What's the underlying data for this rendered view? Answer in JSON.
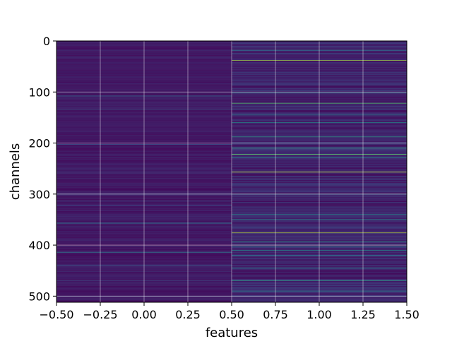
{
  "chart_data": {
    "type": "heatmap",
    "title": "",
    "xlabel": "features",
    "ylabel": "channels",
    "xlim": [
      -0.5,
      1.5
    ],
    "ylim": [
      512,
      0
    ],
    "x_ticks": [
      -0.5,
      -0.25,
      0.0,
      0.25,
      0.5,
      0.75,
      1.0,
      1.25,
      1.5
    ],
    "x_tick_labels": [
      "−0.50",
      "−0.25",
      "0.00",
      "0.25",
      "0.50",
      "0.75",
      "1.00",
      "1.25",
      "1.50"
    ],
    "y_ticks": [
      0,
      100,
      200,
      300,
      400,
      500
    ],
    "y_tick_labels": [
      "0",
      "100",
      "200",
      "300",
      "400",
      "500"
    ],
    "grid": true,
    "colormap": "viridis",
    "n_rows": 512,
    "columns": [
      0,
      1
    ],
    "bright_rows": {
      "column_0": [
        [
          108,
          0.35
        ],
        [
          134,
          0.28
        ],
        [
          203,
          0.25
        ],
        [
          300,
          0.22
        ],
        [
          322,
          0.25
        ],
        [
          357,
          0.38
        ],
        [
          414,
          0.42
        ],
        [
          440,
          0.28
        ],
        [
          470,
          0.22
        ]
      ],
      "column_1": [
        [
          18,
          0.45
        ],
        [
          38,
          0.85
        ],
        [
          102,
          0.4
        ],
        [
          122,
          0.7
        ],
        [
          145,
          0.4
        ],
        [
          160,
          0.48
        ],
        [
          188,
          0.55
        ],
        [
          210,
          0.58
        ],
        [
          222,
          0.75
        ],
        [
          228,
          0.5
        ],
        [
          257,
          0.95
        ],
        [
          300,
          0.4
        ],
        [
          340,
          0.45
        ],
        [
          350,
          0.48
        ],
        [
          376,
          0.88
        ],
        [
          393,
          0.52
        ],
        [
          402,
          0.45
        ],
        [
          410,
          0.5
        ],
        [
          420,
          0.4
        ],
        [
          445,
          0.48
        ],
        [
          470,
          0.55
        ],
        [
          490,
          0.45
        ]
      ]
    }
  }
}
